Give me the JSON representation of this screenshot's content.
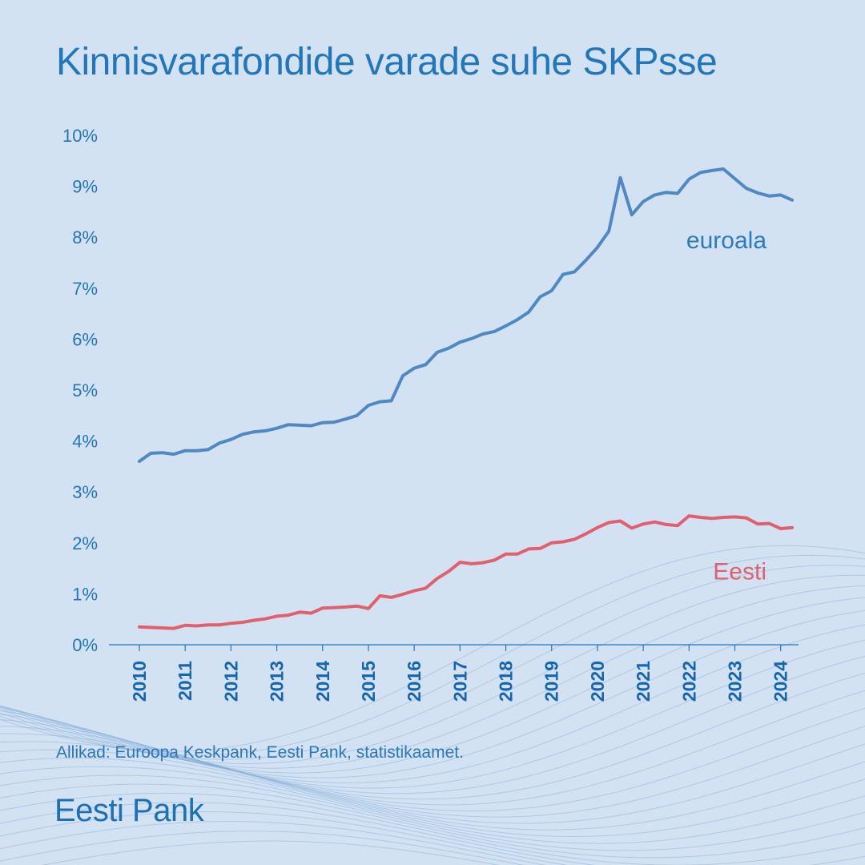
{
  "title": "Kinnisvarafondide varade suhe SKPsse",
  "source": "Allikad: Euroopa Keskpank, Eesti Pank, statistikaamet.",
  "brand": "Eesti Pank",
  "colors": {
    "background": "#d3e2f3",
    "accent": "#2277bb",
    "euroala": "#4f88c3",
    "eesti": "#e0606e"
  },
  "chart_data": {
    "type": "line",
    "ylim": [
      0,
      10
    ],
    "xlim": [
      2010,
      2024.25
    ],
    "y_ticks": [
      {
        "value": 0,
        "label": "0%"
      },
      {
        "value": 1,
        "label": "1%"
      },
      {
        "value": 2,
        "label": "2%"
      },
      {
        "value": 3,
        "label": "3%"
      },
      {
        "value": 4,
        "label": "4%"
      },
      {
        "value": 5,
        "label": "5%"
      },
      {
        "value": 6,
        "label": "6%"
      },
      {
        "value": 7,
        "label": "7%"
      },
      {
        "value": 8,
        "label": "8%"
      },
      {
        "value": 9,
        "label": "9%"
      },
      {
        "value": 10,
        "label": "10%"
      }
    ],
    "x_ticks": [
      {
        "value": 2010,
        "label": "2010"
      },
      {
        "value": 2011,
        "label": "2011"
      },
      {
        "value": 2012,
        "label": "2012"
      },
      {
        "value": 2013,
        "label": "2013"
      },
      {
        "value": 2014,
        "label": "2014"
      },
      {
        "value": 2015,
        "label": "2015"
      },
      {
        "value": 2016,
        "label": "2016"
      },
      {
        "value": 2017,
        "label": "2017"
      },
      {
        "value": 2018,
        "label": "2018"
      },
      {
        "value": 2019,
        "label": "2019"
      },
      {
        "value": 2020,
        "label": "2020"
      },
      {
        "value": 2021,
        "label": "2021"
      },
      {
        "value": 2022,
        "label": "2022"
      },
      {
        "value": 2023,
        "label": "2023"
      },
      {
        "value": 2024,
        "label": "2024"
      }
    ],
    "x": [
      2010.0,
      2010.25,
      2010.5,
      2010.75,
      2011.0,
      2011.25,
      2011.5,
      2011.75,
      2012.0,
      2012.25,
      2012.5,
      2012.75,
      2013.0,
      2013.25,
      2013.5,
      2013.75,
      2014.0,
      2014.25,
      2014.5,
      2014.75,
      2015.0,
      2015.25,
      2015.5,
      2015.75,
      2016.0,
      2016.25,
      2016.5,
      2016.75,
      2017.0,
      2017.25,
      2017.5,
      2017.75,
      2018.0,
      2018.25,
      2018.5,
      2018.75,
      2019.0,
      2019.25,
      2019.5,
      2019.75,
      2020.0,
      2020.25,
      2020.5,
      2020.75,
      2021.0,
      2021.25,
      2021.5,
      2021.75,
      2022.0,
      2022.25,
      2022.5,
      2022.75,
      2023.0,
      2023.25,
      2023.5,
      2023.75,
      2024.0,
      2024.25
    ],
    "series": [
      {
        "name": "euroala",
        "color": "#4f88c3",
        "label_position": "right, above line",
        "values": [
          3.6,
          3.76,
          3.77,
          3.74,
          3.81,
          3.81,
          3.83,
          3.96,
          4.03,
          4.13,
          4.18,
          4.2,
          4.25,
          4.32,
          4.31,
          4.3,
          4.36,
          4.37,
          4.43,
          4.5,
          4.7,
          4.77,
          4.79,
          5.28,
          5.43,
          5.5,
          5.74,
          5.82,
          5.94,
          6.01,
          6.1,
          6.15,
          6.26,
          6.38,
          6.53,
          6.83,
          6.95,
          7.27,
          7.32,
          7.55,
          7.8,
          8.12,
          9.17,
          8.44,
          8.7,
          8.83,
          8.88,
          8.86,
          9.14,
          9.27,
          9.31,
          9.34,
          9.15,
          8.96,
          8.87,
          8.81,
          8.83,
          8.73
        ]
      },
      {
        "name": "Eesti",
        "color": "#e0606e",
        "label_position": "right, below line",
        "values": [
          0.35,
          0.34,
          0.33,
          0.32,
          0.38,
          0.37,
          0.39,
          0.39,
          0.42,
          0.44,
          0.48,
          0.51,
          0.56,
          0.58,
          0.64,
          0.62,
          0.72,
          0.73,
          0.74,
          0.76,
          0.71,
          0.96,
          0.93,
          0.99,
          1.06,
          1.11,
          1.3,
          1.44,
          1.62,
          1.59,
          1.61,
          1.66,
          1.78,
          1.78,
          1.88,
          1.89,
          2.0,
          2.02,
          2.07,
          2.18,
          2.3,
          2.4,
          2.43,
          2.29,
          2.37,
          2.41,
          2.36,
          2.34,
          2.53,
          2.5,
          2.48,
          2.5,
          2.51,
          2.49,
          2.37,
          2.38,
          2.28,
          2.3
        ]
      }
    ],
    "grid": false,
    "legend": "inline labels at line ends"
  }
}
